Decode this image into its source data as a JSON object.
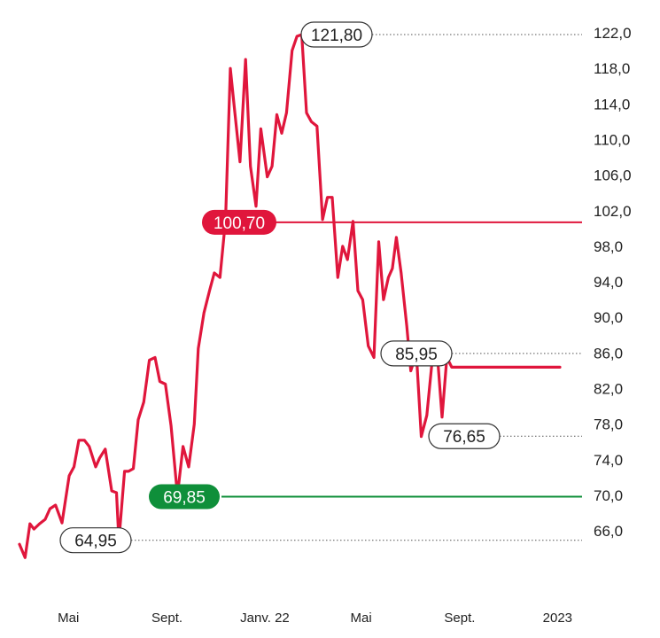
{
  "chart_data": {
    "type": "line",
    "title": "",
    "xlabel": "",
    "ylabel": "",
    "ylim": [
      62.0,
      124.0
    ],
    "y_axis_position": "right",
    "y_ticks": [
      66.0,
      70.0,
      74.0,
      78.0,
      82.0,
      86.0,
      90.0,
      94.0,
      98.0,
      102.0,
      106.0,
      110.0,
      114.0,
      118.0,
      122.0
    ],
    "y_tick_labels": [
      "66,0",
      "70,0",
      "74,0",
      "78,0",
      "82,0",
      "86,0",
      "90,0",
      "94,0",
      "98,0",
      "102,0",
      "106,0",
      "110,0",
      "114,0",
      "118,0",
      "122,0"
    ],
    "x_range": [
      "2021-03-01",
      "2023-01-15"
    ],
    "x_ticks": [
      {
        "date": "2021-05-01",
        "label": "Mai"
      },
      {
        "date": "2021-09-01",
        "label": "Sept."
      },
      {
        "date": "2022-01-01",
        "label": "Janv. 22"
      },
      {
        "date": "2022-05-01",
        "label": "Mai"
      },
      {
        "date": "2022-09-01",
        "label": "Sept."
      },
      {
        "date": "2023-01-01",
        "label": "2023"
      }
    ],
    "series_color": "#e0163c",
    "series": [
      {
        "name": "",
        "x": [
          "2021-03-01",
          "2021-03-08",
          "2021-03-14",
          "2021-03-19",
          "2021-03-26",
          "2021-04-02",
          "2021-04-08",
          "2021-04-15",
          "2021-04-23",
          "2021-05-02",
          "2021-05-08",
          "2021-05-14",
          "2021-05-21",
          "2021-05-27",
          "2021-06-04",
          "2021-06-09",
          "2021-06-16",
          "2021-06-24",
          "2021-06-30",
          "2021-07-03",
          "2021-07-10",
          "2021-07-15",
          "2021-07-21",
          "2021-07-27",
          "2021-08-03",
          "2021-08-10",
          "2021-08-17",
          "2021-08-23",
          "2021-08-30",
          "2021-09-06",
          "2021-09-14",
          "2021-09-21",
          "2021-09-28",
          "2021-10-05",
          "2021-10-10",
          "2021-10-17",
          "2021-10-24",
          "2021-10-30",
          "2021-11-06",
          "2021-11-13",
          "2021-11-19",
          "2021-11-24",
          "2021-12-01",
          "2021-12-08",
          "2021-12-14",
          "2021-12-21",
          "2021-12-27",
          "2022-01-04",
          "2022-01-10",
          "2022-01-16",
          "2022-01-22",
          "2022-01-28",
          "2022-02-04",
          "2022-02-10",
          "2022-02-16",
          "2022-02-22",
          "2022-02-28",
          "2022-03-07",
          "2022-03-14",
          "2022-03-20",
          "2022-03-26",
          "2022-04-02",
          "2022-04-08",
          "2022-04-14",
          "2022-04-21",
          "2022-04-27",
          "2022-05-03",
          "2022-05-10",
          "2022-05-17",
          "2022-05-23",
          "2022-05-29",
          "2022-06-04",
          "2022-06-09",
          "2022-06-14",
          "2022-06-20",
          "2022-06-27",
          "2022-07-02",
          "2022-07-09",
          "2022-07-15",
          "2022-07-22",
          "2022-07-28",
          "2022-08-04",
          "2022-08-10",
          "2022-08-16",
          "2022-08-22",
          "2022-08-28",
          "2022-09-03",
          "2022-09-09",
          "2022-09-15",
          "2022-09-22",
          "2022-09-29",
          "2022-10-05",
          "2022-10-11",
          "2022-10-17",
          "2022-10-24",
          "2022-10-30",
          "2022-11-06",
          "2022-11-12",
          "2022-11-19",
          "2022-11-26",
          "2022-12-02",
          "2022-12-08",
          "2022-12-13",
          "2022-12-18",
          "2022-12-24",
          "2022-12-30",
          "2023-01-04"
        ],
        "y": [
          64.5,
          63.0,
          66.8,
          66.2,
          66.8,
          67.3,
          68.5,
          68.9,
          66.9,
          72.2,
          73.2,
          76.2,
          76.2,
          75.5,
          73.2,
          74.2,
          75.2,
          70.5,
          70.3,
          64.9,
          72.7,
          72.7,
          73.0,
          78.5,
          80.5,
          85.2,
          85.5,
          82.8,
          82.5,
          77.8,
          70.0,
          75.5,
          73.2,
          78.0,
          86.5,
          90.5,
          93.0,
          95.0,
          94.5,
          101.0,
          118.0,
          113.5,
          107.5,
          119.0,
          107.0,
          102.5,
          111.2,
          105.8,
          107.0,
          112.8,
          110.7,
          113.0,
          120.0,
          121.6,
          121.8,
          113.0,
          112.0,
          111.5,
          101.0,
          103.5,
          103.5,
          94.5,
          98.0,
          96.5,
          100.8,
          93.0,
          92.0,
          86.8,
          85.5,
          98.5,
          92.0,
          94.5,
          95.5,
          99.0,
          95.0,
          89.0,
          84.0,
          86.0,
          76.6,
          79.0,
          84.5,
          85.9,
          78.8,
          85.5,
          84.4,
          84.4,
          84.4,
          84.4,
          84.4,
          84.4,
          84.4,
          84.4,
          84.4,
          84.4,
          84.4,
          84.4,
          84.4,
          84.4,
          84.4,
          84.4,
          84.4,
          84.4,
          84.4,
          84.4,
          84.4,
          84.4,
          84.4
        ]
      }
    ],
    "reference_lines": [
      {
        "name": "upper-threshold",
        "value": 100.7,
        "label": "100,70",
        "color": "#e0163c",
        "style": "solid"
      },
      {
        "name": "lower-threshold",
        "value": 69.85,
        "label": "69,85",
        "color": "#0f8f3a",
        "style": "solid"
      }
    ],
    "annotations": [
      {
        "name": "peak",
        "date": "2022-04-22",
        "value": 121.8,
        "label": "121,80"
      },
      {
        "name": "local-high",
        "date": "2022-12-05",
        "value": 85.95,
        "label": "85,95"
      },
      {
        "name": "local-low",
        "date": "2022-11-19",
        "value": 76.65,
        "label": "76,65"
      },
      {
        "name": "low",
        "date": "2021-07-03",
        "value": 64.95,
        "label": "64,95"
      }
    ],
    "grid": false,
    "legend": "none"
  }
}
